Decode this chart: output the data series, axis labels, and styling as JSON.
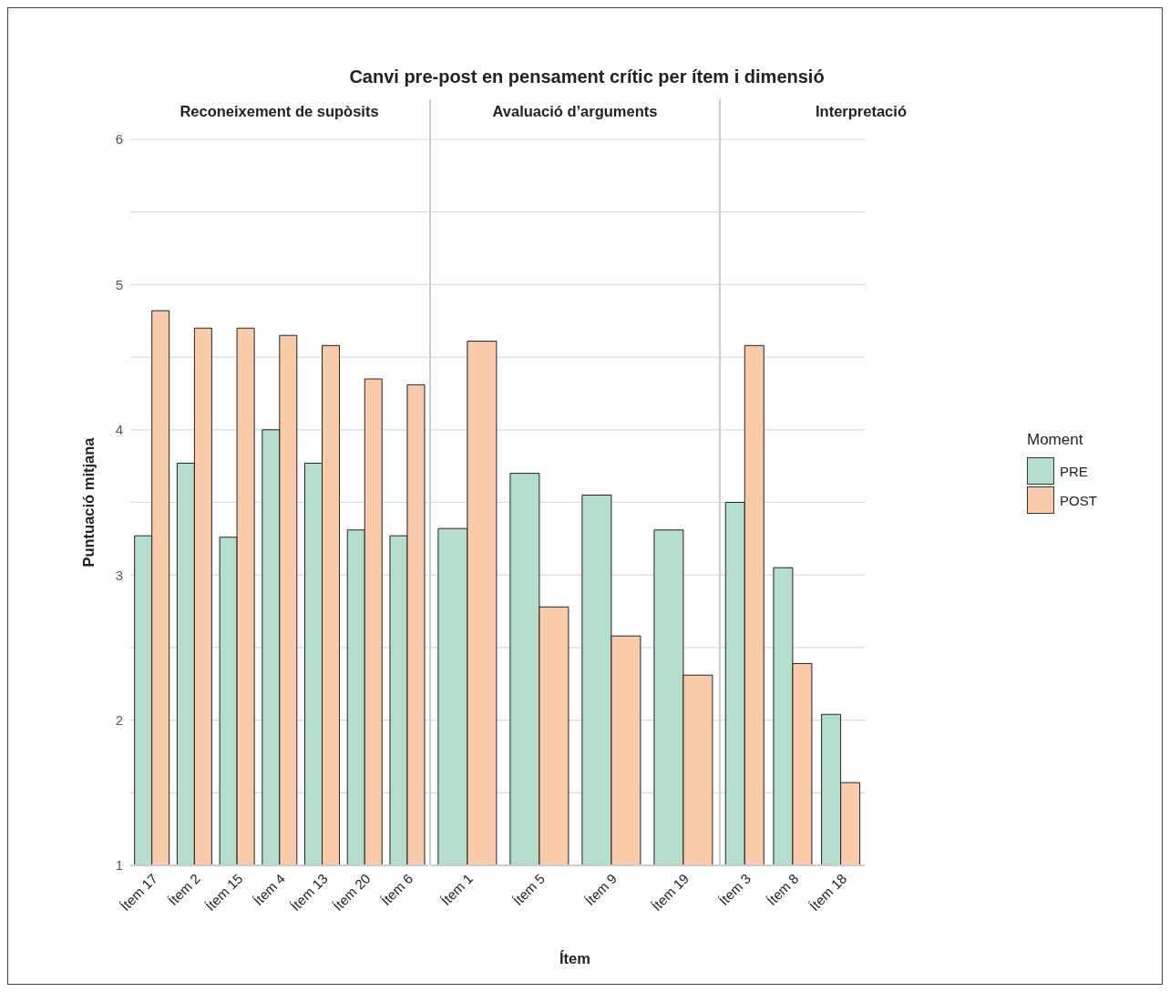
{
  "chart_data": [
    {
      "type": "bar",
      "title": "Canvi pre-post en pensament crític per ítem i dimensió",
      "subtitle": "Reconeixement de supòsits",
      "ylabel": "Puntuació mitjana",
      "categories": [
        "Ítem 17",
        "Ítem 2",
        "Ítem 15",
        "Ítem 4",
        "Ítem 13",
        "Ítem 20",
        "Ítem 6"
      ],
      "series": [
        {
          "color": "#b3dfcc",
          "values": [
            3.27,
            3.77,
            3.26,
            4.0,
            3.77,
            3.31,
            3.27
          ]
        },
        {
          "color": "#f9cbab",
          "values": [
            4.82,
            4.7,
            4.7,
            4.65,
            4.58,
            4.35,
            4.31
          ]
        }
      ],
      "ylim": [
        1,
        6
      ],
      "yticks": [
        1,
        {
          "value": 1.5,
          "label": null
        },
        2,
        {
          "value": 2.5,
          "label": null
        },
        3,
        {
          "value": 3.5,
          "label": null
        },
        4,
        {
          "value": 4.5,
          "label": null
        },
        5,
        {
          "value": 5.5,
          "label": null
        },
        6
      ],
      "grid": "y",
      "legend": false
    },
    {
      "type": "bar",
      "subtitle": "Avaluació d’arguments",
      "xlabel": "Ítem",
      "categories": [
        "Ítem 1",
        "Ítem 5",
        "Ítem 9",
        "Ítem 19"
      ],
      "series": [
        {
          "color": "#b3dfcc",
          "values": [
            3.32,
            3.7,
            3.55,
            3.31
          ]
        },
        {
          "color": "#f9cbab",
          "values": [
            4.61,
            2.78,
            2.58,
            2.31
          ]
        }
      ],
      "ylim": [
        1,
        6
      ],
      "yticks": [
        1,
        {
          "value": 1.5,
          "label": null
        },
        2,
        {
          "value": 2.5,
          "label": null
        },
        3,
        {
          "value": 3.5,
          "label": null
        },
        4,
        {
          "value": 4.5,
          "label": null
        },
        5,
        {
          "value": 5.5,
          "label": null
        },
        6
      ],
      "grid": "y",
      "tick_labels": "x",
      "legend": false
    },
    {
      "type": "bar",
      "subtitle": "Interpretació",
      "legend_title": "Moment",
      "categories": [
        "Ítem 3",
        "Ítem 8",
        "Ítem 18"
      ],
      "series": [
        {
          "name": "PRE",
          "color": "#b3dfcc",
          "values": [
            3.5,
            3.05,
            2.04
          ]
        },
        {
          "name": "POST",
          "color": "#f9cbab",
          "values": [
            4.58,
            2.39,
            1.57
          ]
        }
      ],
      "ylim": [
        1,
        6
      ],
      "yticks": [
        1,
        {
          "value": 1.5,
          "label": null
        },
        2,
        {
          "value": 2.5,
          "label": null
        },
        3,
        {
          "value": 3.5,
          "label": null
        },
        4,
        {
          "value": 4.5,
          "label": null
        },
        5,
        {
          "value": 5.5,
          "label": null
        },
        6
      ],
      "grid": "y",
      "tick_labels": "x",
      "legend": "right"
    }
  ]
}
